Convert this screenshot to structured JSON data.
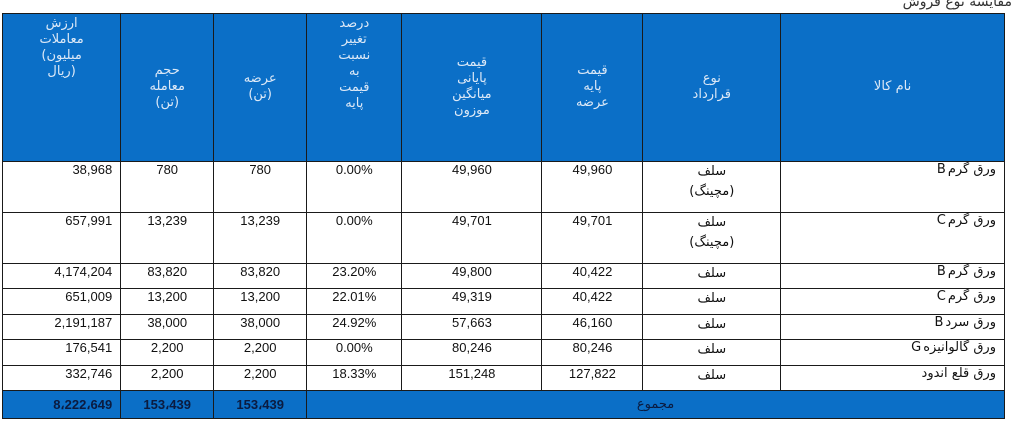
{
  "top_caption": "مقایسه نوع فروش",
  "headers": {
    "trade_value": "ارزش\nمعاملات\n(میلیون\nریال)",
    "trade_volume": "حجم\nمعامله\n(تن)",
    "supply": "عرضه\n(تن)",
    "change_percent": "درصد\nتغییر\nنسبت\nبه\nقیمت\nپایه",
    "final_price": "قیمت\nپایانی\nمیانگین\nموزون",
    "base_price": "قیمت\nپایه\nعرضه",
    "contract_type": "نوع\nقرارداد",
    "product_name": "نام کالا"
  },
  "rows": [
    {
      "trade_value": "38,968",
      "trade_volume": "780",
      "supply": "780",
      "change_percent": "0.00%",
      "final_price": "49,960",
      "base_price": "49,960",
      "contract_type": "سلف\n(مچینگ)",
      "product_name": "ورق گرمB"
    },
    {
      "trade_value": "657,991",
      "trade_volume": "13,239",
      "supply": "13,239",
      "change_percent": "0.00%",
      "final_price": "49,701",
      "base_price": "49,701",
      "contract_type": "سلف\n(مچینگ)",
      "product_name": "ورق گرمC"
    },
    {
      "trade_value": "4,174,204",
      "trade_volume": "83,820",
      "supply": "83,820",
      "change_percent": "23.20%",
      "final_price": "49,800",
      "base_price": "40,422",
      "contract_type": "سلف",
      "product_name": "ورق گرمB"
    },
    {
      "trade_value": "651,009",
      "trade_volume": "13,200",
      "supply": "13,200",
      "change_percent": "22.01%",
      "final_price": "49,319",
      "base_price": "40,422",
      "contract_type": "سلف",
      "product_name": "ورق گرمC"
    },
    {
      "trade_value": "2,191,187",
      "trade_volume": "38,000",
      "supply": "38,000",
      "change_percent": "24.92%",
      "final_price": "57,663",
      "base_price": "46,160",
      "contract_type": "سلف",
      "product_name": "ورق سردB"
    },
    {
      "trade_value": "176,541",
      "trade_volume": "2,200",
      "supply": "2,200",
      "change_percent": "0.00%",
      "final_price": "80,246",
      "base_price": "80,246",
      "contract_type": "سلف",
      "product_name": "ورق گالوانیزهG"
    },
    {
      "trade_value": "332,746",
      "trade_volume": "2,200",
      "supply": "2,200",
      "change_percent": "18.33%",
      "final_price": "151,248",
      "base_price": "127,822",
      "contract_type": "سلف",
      "product_name": "ورق قلع اندود"
    }
  ],
  "totals": {
    "trade_value": "8،222،649",
    "trade_volume": "153،439",
    "supply": "153،439",
    "label": "مجموع"
  },
  "colors": {
    "header_bg": "#0b6fc7",
    "header_text": "#dde9f7",
    "grid": "#1a1a1a"
  }
}
